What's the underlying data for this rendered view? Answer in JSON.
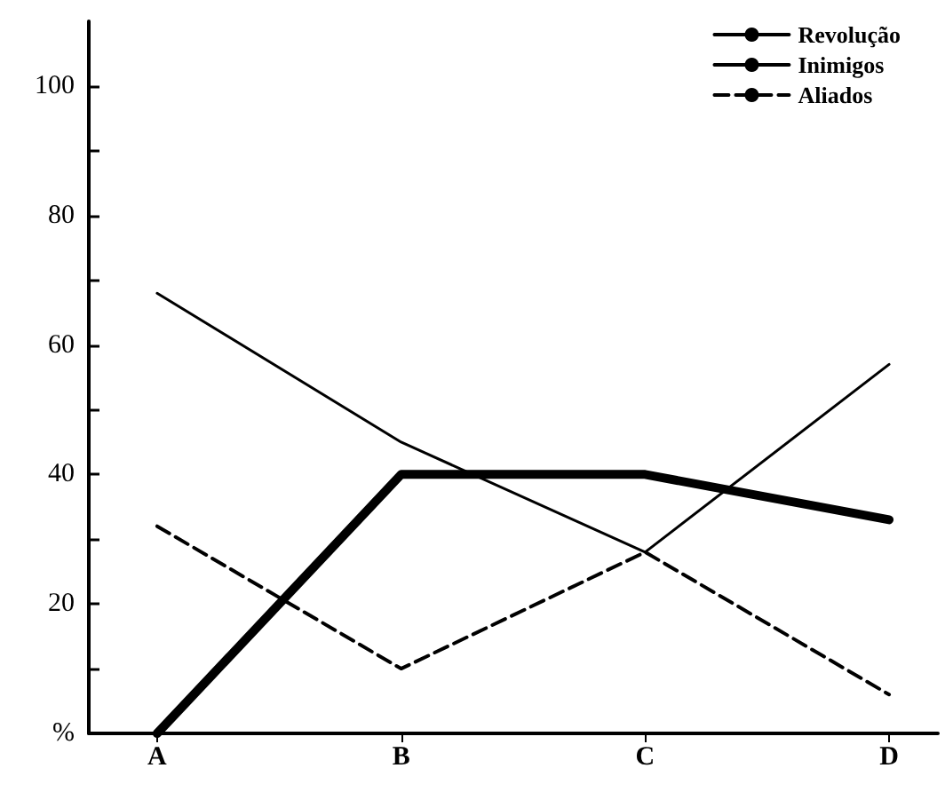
{
  "chart_data": {
    "type": "line",
    "categories": [
      "A",
      "B",
      "C",
      "D"
    ],
    "series": [
      {
        "name": "Revolução",
        "color": "#000000",
        "values": [
          68,
          45,
          28,
          57
        ],
        "line_style": "solid"
      },
      {
        "name": "Inimigos",
        "color": "#000000",
        "values": [
          0,
          40,
          40,
          33
        ],
        "line_style": "solid"
      },
      {
        "name": "Aliados",
        "color": "#000000",
        "values": [
          32,
          10,
          28,
          6
        ],
        "line_style": "dashed"
      }
    ],
    "ylim": [
      0,
      110
    ],
    "yticks": [
      {
        "value": 0,
        "label": "%"
      },
      {
        "value": 10,
        "label": null
      },
      20,
      {
        "value": 30,
        "label": null
      },
      40,
      {
        "value": 50,
        "label": null
      },
      60,
      {
        "value": 70,
        "label": null
      },
      80,
      {
        "value": 90,
        "label": null
      },
      100
    ],
    "grid": false,
    "legend": "top right",
    "marker": "none"
  }
}
